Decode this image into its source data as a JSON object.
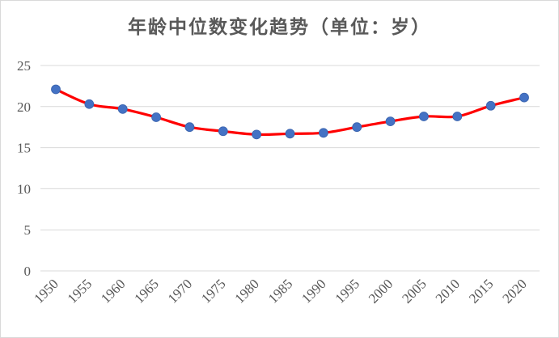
{
  "chart_data": {
    "type": "line",
    "title": "年龄中位数变化趋势（单位：岁）",
    "x": [
      "1950",
      "1955",
      "1960",
      "1965",
      "1970",
      "1975",
      "1980",
      "1985",
      "1990",
      "1995",
      "2000",
      "2005",
      "2010",
      "2015",
      "2020"
    ],
    "series": [
      {
        "values": [
          22.1,
          20.3,
          19.7,
          18.7,
          17.5,
          17.0,
          16.6,
          16.7,
          16.8,
          17.5,
          18.2,
          18.8,
          18.8,
          20.1,
          21.1
        ]
      }
    ],
    "ylim": [
      0,
      25
    ],
    "yticks": [
      "0",
      "5",
      "10",
      "15",
      "20",
      "25"
    ],
    "grid": true,
    "line_color": "#ff0000",
    "marker_color": "#4472c4"
  }
}
